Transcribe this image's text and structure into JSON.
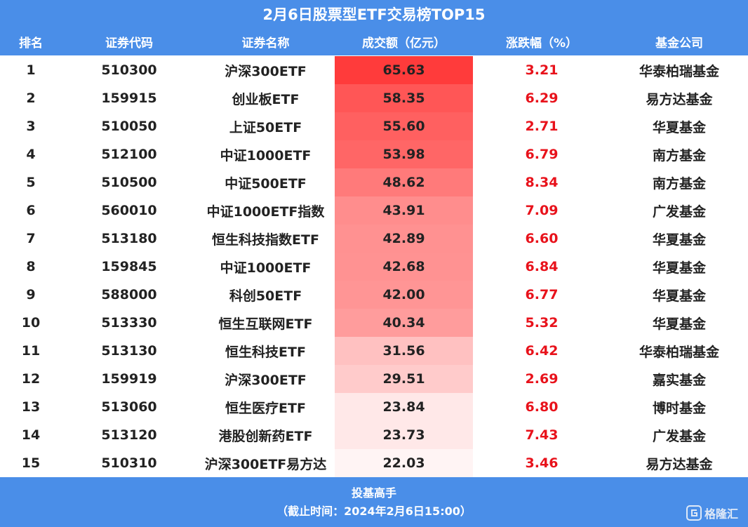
{
  "title": "2月6日股票型ETF交易榜TOP15",
  "headers": {
    "rank": "排名",
    "code": "证券代码",
    "name": "证券名称",
    "amount": "成交额（亿元）",
    "change": "涨跌幅（%）",
    "company": "基金公司"
  },
  "colors": {
    "header_bg": "#4a8ee8",
    "change_text": "#e8121b",
    "heat_max": "#ff3b3b",
    "heat_min": "#fff4f4"
  },
  "rows": [
    {
      "rank": "1",
      "code": "510300",
      "name": "沪深300ETF",
      "amount": "65.63",
      "change": "3.21",
      "company": "华泰柏瑞基金"
    },
    {
      "rank": "2",
      "code": "159915",
      "name": "创业板ETF",
      "amount": "58.35",
      "change": "6.29",
      "company": "易方达基金"
    },
    {
      "rank": "3",
      "code": "510050",
      "name": "上证50ETF",
      "amount": "55.60",
      "change": "2.71",
      "company": "华夏基金"
    },
    {
      "rank": "4",
      "code": "512100",
      "name": "中证1000ETF",
      "amount": "53.98",
      "change": "6.79",
      "company": "南方基金"
    },
    {
      "rank": "5",
      "code": "510500",
      "name": "中证500ETF",
      "amount": "48.62",
      "change": "8.34",
      "company": "南方基金"
    },
    {
      "rank": "6",
      "code": "560010",
      "name": "中证1000ETF指数",
      "amount": "43.91",
      "change": "7.09",
      "company": "广发基金"
    },
    {
      "rank": "7",
      "code": "513180",
      "name": "恒生科技指数ETF",
      "amount": "42.89",
      "change": "6.60",
      "company": "华夏基金"
    },
    {
      "rank": "8",
      "code": "159845",
      "name": "中证1000ETF",
      "amount": "42.68",
      "change": "6.84",
      "company": "华夏基金"
    },
    {
      "rank": "9",
      "code": "588000",
      "name": "科创50ETF",
      "amount": "42.00",
      "change": "6.77",
      "company": "华夏基金"
    },
    {
      "rank": "10",
      "code": "513330",
      "name": "恒生互联网ETF",
      "amount": "40.34",
      "change": "5.32",
      "company": "华夏基金"
    },
    {
      "rank": "11",
      "code": "513130",
      "name": "恒生科技ETF",
      "amount": "31.56",
      "change": "6.42",
      "company": "华泰柏瑞基金"
    },
    {
      "rank": "12",
      "code": "159919",
      "name": "沪深300ETF",
      "amount": "29.51",
      "change": "2.69",
      "company": "嘉实基金"
    },
    {
      "rank": "13",
      "code": "513060",
      "name": "恒生医疗ETF",
      "amount": "23.84",
      "change": "6.80",
      "company": "博时基金"
    },
    {
      "rank": "14",
      "code": "513120",
      "name": "港股创新药ETF",
      "amount": "23.73",
      "change": "7.43",
      "company": "广发基金"
    },
    {
      "rank": "15",
      "code": "510310",
      "name": "沪深300ETF易方达",
      "amount": "22.03",
      "change": "3.46",
      "company": "易方达基金"
    }
  ],
  "footer": {
    "line1": "投基高手",
    "line2": "（截止时间：2024年2月6日15:00）"
  },
  "watermark": {
    "icon": "gelonghui-logo-icon",
    "text": "格隆汇"
  }
}
